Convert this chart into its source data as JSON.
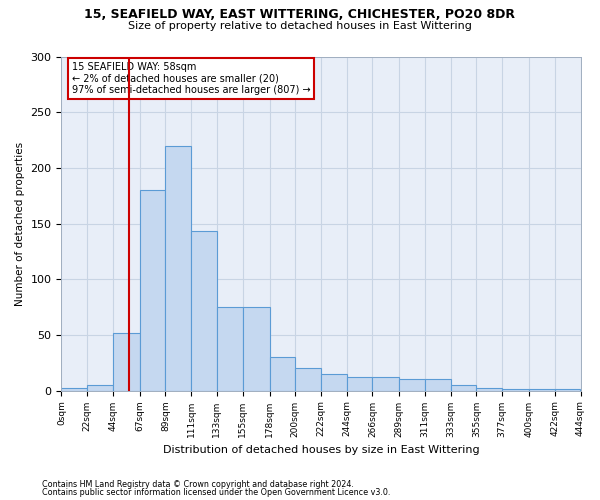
{
  "title1": "15, SEAFIELD WAY, EAST WITTERING, CHICHESTER, PO20 8DR",
  "title2": "Size of property relative to detached houses in East Wittering",
  "xlabel": "Distribution of detached houses by size in East Wittering",
  "ylabel": "Number of detached properties",
  "footer1": "Contains HM Land Registry data © Crown copyright and database right 2024.",
  "footer2": "Contains public sector information licensed under the Open Government Licence v3.0.",
  "annotation_title": "15 SEAFIELD WAY: 58sqm",
  "annotation_line1": "← 2% of detached houses are smaller (20)",
  "annotation_line2": "97% of semi-detached houses are larger (807) →",
  "property_size": 58,
  "bin_edges": [
    0,
    22,
    44,
    67,
    89,
    111,
    133,
    155,
    178,
    200,
    222,
    244,
    266,
    289,
    311,
    333,
    355,
    377,
    400,
    422,
    444
  ],
  "bar_heights": [
    2,
    5,
    52,
    180,
    220,
    143,
    75,
    75,
    30,
    20,
    15,
    12,
    12,
    10,
    10,
    5,
    2,
    1,
    1,
    1
  ],
  "bar_color": "#c5d8f0",
  "bar_edge_color": "#5b9bd5",
  "vline_color": "#cc0000",
  "vline_x": 58,
  "annotation_box_color": "#cc0000",
  "grid_color": "#c8d4e4",
  "bg_color": "#e8eef8",
  "ylim": [
    0,
    300
  ],
  "yticks": [
    0,
    50,
    100,
    150,
    200,
    250,
    300
  ]
}
